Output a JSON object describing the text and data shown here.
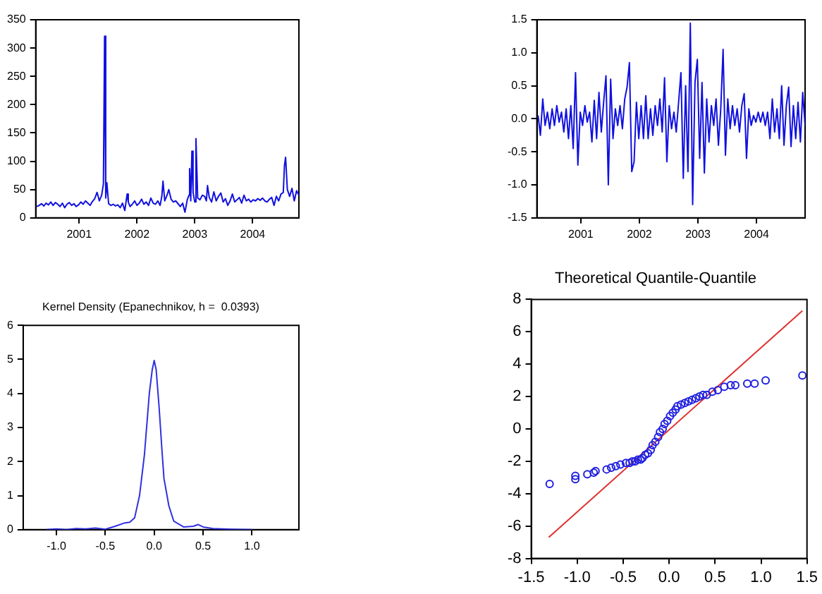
{
  "chart_data": [
    {
      "type": "line",
      "xlim": [
        2000.25,
        2004.8
      ],
      "xticks": [
        2001,
        2002,
        2003,
        2004
      ],
      "ylim": [
        0,
        350
      ],
      "yticks": [
        0,
        50,
        100,
        150,
        200,
        250,
        300,
        350
      ],
      "series": [
        {
          "color": "#1010e0",
          "x": [
            2000.27,
            2000.31,
            2000.35,
            2000.39,
            2000.43,
            2000.47,
            2000.51,
            2000.55,
            2000.59,
            2000.63,
            2000.67,
            2000.71,
            2000.75,
            2000.79,
            2000.83,
            2000.87,
            2000.91,
            2000.95,
            2000.99,
            2001.03,
            2001.07,
            2001.11,
            2001.15,
            2001.19,
            2001.23,
            2001.27,
            2001.31,
            2001.35,
            2001.39,
            2001.42,
            2001.44,
            2001.46,
            2001.48,
            2001.51,
            2001.55,
            2001.59,
            2001.63,
            2001.67,
            2001.71,
            2001.75,
            2001.79,
            2001.83,
            2001.85,
            2001.88,
            2001.92,
            2001.96,
            2002.0,
            2002.04,
            2002.08,
            2002.12,
            2002.16,
            2002.2,
            2002.24,
            2002.28,
            2002.32,
            2002.36,
            2002.4,
            2002.43,
            2002.45,
            2002.48,
            2002.52,
            2002.55,
            2002.59,
            2002.63,
            2002.67,
            2002.71,
            2002.75,
            2002.79,
            2002.83,
            2002.87,
            2002.9,
            2002.91,
            2002.93,
            2002.95,
            2002.97,
            2003.0,
            2003.02,
            2003.05,
            2003.09,
            2003.13,
            2003.17,
            2003.2,
            2003.22,
            2003.25,
            2003.29,
            2003.33,
            2003.37,
            2003.41,
            2003.45,
            2003.49,
            2003.53,
            2003.57,
            2003.61,
            2003.65,
            2003.69,
            2003.73,
            2003.77,
            2003.81,
            2003.85,
            2003.89,
            2003.93,
            2003.97,
            2004.01,
            2004.05,
            2004.09,
            2004.13,
            2004.17,
            2004.21,
            2004.25,
            2004.29,
            2004.33,
            2004.37,
            2004.41,
            2004.45,
            2004.49,
            2004.53,
            2004.55,
            2004.57,
            2004.6,
            2004.64,
            2004.68,
            2004.72,
            2004.76,
            2004.8
          ],
          "values": [
            20,
            22,
            25,
            21,
            26,
            23,
            28,
            22,
            27,
            24,
            20,
            26,
            18,
            24,
            27,
            22,
            25,
            20,
            23,
            28,
            24,
            30,
            26,
            22,
            29,
            34,
            45,
            30,
            40,
            60,
            321,
            35,
            62,
            25,
            22,
            24,
            21,
            23,
            18,
            26,
            13,
            42,
            28,
            20,
            24,
            30,
            22,
            26,
            33,
            24,
            28,
            22,
            35,
            26,
            24,
            30,
            22,
            38,
            65,
            30,
            40,
            50,
            33,
            28,
            30,
            25,
            20,
            26,
            10,
            32,
            40,
            87,
            30,
            118,
            45,
            28,
            140,
            35,
            32,
            40,
            38,
            30,
            57,
            36,
            28,
            46,
            30,
            38,
            44,
            28,
            34,
            22,
            30,
            42,
            28,
            32,
            36,
            26,
            40,
            30,
            33,
            28,
            32,
            30,
            34,
            31,
            35,
            30,
            28,
            33,
            36,
            22,
            38,
            30,
            42,
            45,
            92,
            107,
            50,
            38,
            52,
            30,
            48,
            40
          ]
        }
      ]
    },
    {
      "type": "line",
      "xlim": [
        2000.25,
        2004.83
      ],
      "xticks": [
        2001,
        2002,
        2003,
        2004
      ],
      "ylim": [
        -1.5,
        1.5
      ],
      "yticks": [
        {
          "value": -1.5,
          "label": "-1.5"
        },
        {
          "value": -1,
          "label": "-1.0"
        },
        {
          "value": -0.5,
          "label": "-0.5"
        },
        {
          "value": 0,
          "label": "0.0"
        },
        {
          "value": 0.5,
          "label": "0.5"
        },
        {
          "value": 1,
          "label": "1.0"
        },
        {
          "value": 1.5,
          "label": "1.5"
        }
      ],
      "series": [
        {
          "color": "#1010e0",
          "x": [
            2000.27,
            2000.31,
            2000.35,
            2000.39,
            2000.43,
            2000.47,
            2000.51,
            2000.55,
            2000.59,
            2000.63,
            2000.67,
            2000.71,
            2000.75,
            2000.79,
            2000.83,
            2000.87,
            2000.91,
            2000.95,
            2000.99,
            2001.03,
            2001.07,
            2001.11,
            2001.15,
            2001.19,
            2001.23,
            2001.27,
            2001.31,
            2001.35,
            2001.39,
            2001.43,
            2001.47,
            2001.51,
            2001.55,
            2001.59,
            2001.63,
            2001.67,
            2001.71,
            2001.75,
            2001.79,
            2001.83,
            2001.87,
            2001.91,
            2001.95,
            2001.99,
            2002.03,
            2002.07,
            2002.11,
            2002.15,
            2002.19,
            2002.23,
            2002.27,
            2002.31,
            2002.35,
            2002.39,
            2002.43,
            2002.47,
            2002.51,
            2002.55,
            2002.59,
            2002.63,
            2002.67,
            2002.71,
            2002.75,
            2002.79,
            2002.83,
            2002.87,
            2002.91,
            2002.95,
            2002.99,
            2003.03,
            2003.07,
            2003.11,
            2003.15,
            2003.19,
            2003.23,
            2003.27,
            2003.31,
            2003.35,
            2003.39,
            2003.43,
            2003.47,
            2003.51,
            2003.55,
            2003.59,
            2003.63,
            2003.67,
            2003.71,
            2003.75,
            2003.79,
            2003.83,
            2003.87,
            2003.91,
            2003.95,
            2003.99,
            2004.03,
            2004.07,
            2004.11,
            2004.15,
            2004.19,
            2004.23,
            2004.27,
            2004.31,
            2004.35,
            2004.39,
            2004.43,
            2004.47,
            2004.51,
            2004.55,
            2004.59,
            2004.63,
            2004.67,
            2004.71,
            2004.75,
            2004.79,
            2004.83
          ],
          "values": [
            0.05,
            -0.25,
            0.3,
            -0.1,
            0.1,
            -0.15,
            0.15,
            -0.1,
            0.2,
            -0.05,
            0.1,
            -0.2,
            0.15,
            -0.3,
            0.2,
            -0.45,
            0.7,
            -0.7,
            0.1,
            -0.1,
            0.2,
            -0.05,
            0.1,
            -0.35,
            0.28,
            -0.3,
            0.4,
            -0.2,
            0.25,
            0.65,
            -1.0,
            0.6,
            -0.3,
            0.15,
            -0.1,
            0.2,
            -0.15,
            0.3,
            0.48,
            0.85,
            -0.8,
            -0.65,
            0.25,
            -0.3,
            0.2,
            -0.3,
            0.35,
            -0.3,
            0.15,
            -0.25,
            0.2,
            -0.1,
            0.3,
            -0.2,
            0.62,
            -0.65,
            0.2,
            -0.15,
            0.1,
            -0.2,
            0.25,
            0.7,
            -0.9,
            0.5,
            -0.8,
            1.45,
            -1.3,
            0.55,
            0.9,
            -0.6,
            0.55,
            -0.82,
            0.3,
            -0.35,
            0.2,
            -0.1,
            0.3,
            -0.4,
            0.15,
            1.05,
            -0.55,
            0.3,
            -0.15,
            0.2,
            -0.1,
            0.15,
            -0.2,
            0.2,
            0.38,
            -0.6,
            0.15,
            -0.1,
            0.05,
            -0.05,
            0.1,
            -0.05,
            0.1,
            -0.1,
            0.1,
            -0.3,
            0.3,
            -0.2,
            0.15,
            -0.3,
            0.5,
            -0.4,
            0.2,
            0.48,
            -0.42,
            0.2,
            -0.3,
            0.25,
            -0.35,
            0.4,
            -0.1
          ]
        }
      ]
    },
    {
      "type": "line",
      "title": "Kernel Density (Epanechnikov, h =  0.0393)",
      "xlim": [
        -1.34,
        1.48
      ],
      "xticks": [
        {
          "value": -1,
          "label": "-1.0"
        },
        {
          "value": -0.5,
          "label": "-0.5"
        },
        {
          "value": 0,
          "label": "0.0"
        },
        {
          "value": 0.5,
          "label": "0.5"
        },
        {
          "value": 1,
          "label": "1.0"
        }
      ],
      "ylim": [
        0,
        6
      ],
      "yticks": [
        0,
        1,
        2,
        3,
        4,
        5,
        6
      ],
      "series": [
        {
          "color": "#3030e0",
          "x": [
            -1.1,
            -1.0,
            -0.9,
            -0.8,
            -0.7,
            -0.6,
            -0.5,
            -0.4,
            -0.3,
            -0.25,
            -0.2,
            -0.15,
            -0.1,
            -0.05,
            -0.02,
            0,
            0.02,
            0.05,
            0.08,
            0.1,
            0.15,
            0.2,
            0.3,
            0.4,
            0.45,
            0.5,
            0.6,
            0.8,
            1.0
          ],
          "values": [
            0,
            0.02,
            0,
            0.03,
            0.02,
            0.05,
            0.01,
            0.1,
            0.2,
            0.22,
            0.35,
            1.0,
            2.2,
            4.0,
            4.7,
            4.97,
            4.7,
            3.6,
            2.3,
            1.5,
            0.7,
            0.25,
            0.08,
            0.1,
            0.15,
            0.08,
            0.03,
            0.01,
            0
          ]
        }
      ]
    },
    {
      "type": "scatter",
      "title": "Theoretical Quantile-Quantile",
      "xlim": [
        -1.5,
        1.5
      ],
      "xticks": [
        {
          "value": -1.5,
          "label": "-1.5"
        },
        {
          "value": -1,
          "label": "-1.0"
        },
        {
          "value": -0.5,
          "label": "-0.5"
        },
        {
          "value": 0,
          "label": "0.0"
        },
        {
          "value": 0.5,
          "label": "0.5"
        },
        {
          "value": 1,
          "label": "1.0"
        },
        {
          "value": 1.5,
          "label": "1.5"
        }
      ],
      "ylim": [
        -8,
        8
      ],
      "yticks": [
        -8,
        -6,
        -4,
        -2,
        0,
        2,
        4,
        6,
        8
      ],
      "series": [
        {
          "marker": "circle",
          "color": "#2020e0",
          "x": [
            -1.3,
            -1.02,
            -1.02,
            -0.89,
            -0.82,
            -0.8,
            -0.68,
            -0.63,
            -0.58,
            -0.53,
            -0.47,
            -0.43,
            -0.4,
            -0.37,
            -0.34,
            -0.31,
            -0.29,
            -0.26,
            -0.23,
            -0.2,
            -0.18,
            -0.15,
            -0.12,
            -0.1,
            -0.07,
            -0.05,
            -0.02,
            0.01,
            0.04,
            0.07,
            0.09,
            0.13,
            0.17,
            0.21,
            0.25,
            0.29,
            0.33,
            0.37,
            0.41,
            0.47,
            0.53,
            0.6,
            0.67,
            0.72,
            0.85,
            0.93,
            1.05,
            1.45
          ],
          "values": [
            -3.4,
            -2.9,
            -3.1,
            -2.8,
            -2.7,
            -2.6,
            -2.5,
            -2.4,
            -2.3,
            -2.2,
            -2.1,
            -2.1,
            -2.0,
            -2.0,
            -1.9,
            -1.9,
            -1.8,
            -1.6,
            -1.5,
            -1.3,
            -1.0,
            -0.8,
            -0.5,
            -0.2,
            0.0,
            0.3,
            0.5,
            0.8,
            1.0,
            1.2,
            1.4,
            1.5,
            1.6,
            1.7,
            1.8,
            1.9,
            2.0,
            2.1,
            2.1,
            2.3,
            2.4,
            2.6,
            2.7,
            2.7,
            2.8,
            2.8,
            3.0,
            3.3
          ]
        },
        {
          "type": "line",
          "color": "#e03030",
          "x": [
            -1.31,
            1.45
          ],
          "values": [
            -6.7,
            7.3
          ]
        }
      ]
    }
  ]
}
